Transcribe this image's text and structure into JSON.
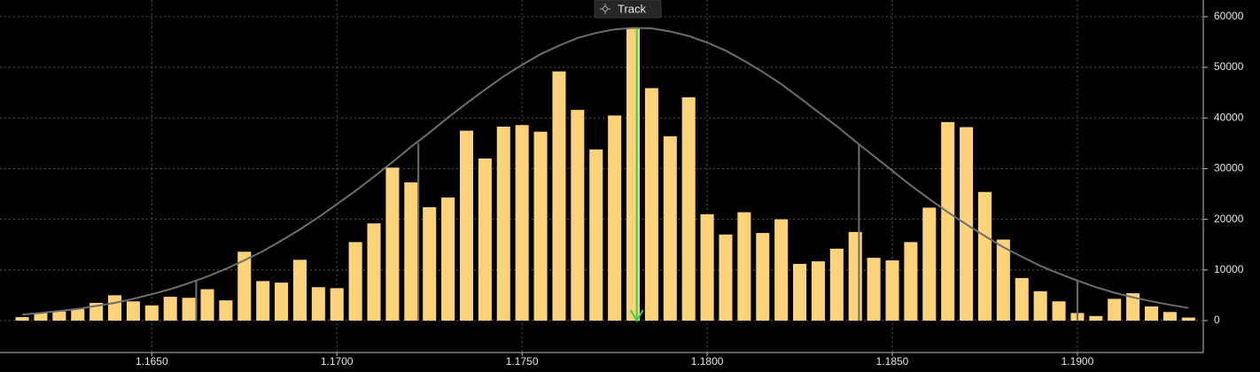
{
  "chart_data": {
    "type": "bar",
    "button": "Track",
    "x": [
      1.1615,
      1.162,
      1.1625,
      1.163,
      1.1635,
      1.164,
      1.1645,
      1.165,
      1.1655,
      1.166,
      1.1665,
      1.167,
      1.1675,
      1.168,
      1.1685,
      1.169,
      1.1695,
      1.17,
      1.1705,
      1.171,
      1.1715,
      1.172,
      1.1725,
      1.173,
      1.1735,
      1.174,
      1.1745,
      1.175,
      1.1755,
      1.176,
      1.1765,
      1.177,
      1.1775,
      1.178,
      1.1785,
      1.179,
      1.1795,
      1.18,
      1.1805,
      1.181,
      1.1815,
      1.182,
      1.1825,
      1.183,
      1.1835,
      1.184,
      1.1845,
      1.185,
      1.1855,
      1.186,
      1.1865,
      1.187,
      1.1875,
      1.188,
      1.1885,
      1.189,
      1.1895,
      1.19,
      1.1905,
      1.191,
      1.1915,
      1.192,
      1.1925,
      1.193
    ],
    "series": [
      {
        "type": "bar",
        "color": "#fcd27b",
        "values": [
          700,
          1500,
          1800,
          2300,
          3500,
          5000,
          3800,
          3000,
          4700,
          4500,
          6200,
          4000,
          13600,
          7800,
          7500,
          12000,
          6600,
          6400,
          15500,
          19200,
          30200,
          27300,
          22400,
          24300,
          37500,
          32000,
          38300,
          38600,
          37300,
          49200,
          41600,
          33800,
          40500,
          57800,
          45900,
          36400,
          44100,
          21000,
          17000,
          21400,
          17300,
          20000,
          11200,
          11700,
          14200,
          17500,
          12400,
          11900,
          15500,
          22300,
          39200,
          38200,
          25400,
          16000,
          8400,
          5800,
          3800,
          1500,
          900,
          4300,
          5400,
          2800,
          1700,
          600
        ]
      },
      {
        "type": "line",
        "color": "#6e6e6e",
        "values": [
          1200,
          1500,
          1900,
          2300,
          2900,
          3500,
          4300,
          5200,
          6200,
          7400,
          8700,
          10200,
          11900,
          13700,
          15800,
          18000,
          20400,
          23000,
          25600,
          28400,
          31300,
          34300,
          37100,
          40100,
          42900,
          45600,
          48200,
          50500,
          52600,
          54300,
          55800,
          56800,
          57500,
          57800,
          57700,
          57100,
          56200,
          54900,
          53300,
          51300,
          49100,
          46700,
          44000,
          41200,
          38400,
          35400,
          32500,
          29600,
          26700,
          24000,
          21400,
          19000,
          16700,
          14500,
          12600,
          10800,
          9300,
          7900,
          6600,
          5500,
          4600,
          3800,
          3100,
          2500
        ]
      }
    ],
    "reference_lines": [
      {
        "x": 1.1662,
        "value": 7800,
        "color": "#6e6e6e"
      },
      {
        "x": 1.1722,
        "value": 35000,
        "color": "#6e6e6e"
      },
      {
        "x": 1.1781,
        "value": 57800,
        "color": "#3cd13c"
      },
      {
        "x": 1.1841,
        "value": 35000,
        "color": "#6e6e6e"
      },
      {
        "x": 1.19,
        "value": 7800,
        "color": "#6e6e6e"
      }
    ],
    "xlim": [
      1.1609,
      1.1934
    ],
    "xticks": [
      {
        "value": 1.165,
        "label": "1.1650"
      },
      {
        "value": 1.17,
        "label": "1.1700"
      },
      {
        "value": 1.175,
        "label": "1.1750"
      },
      {
        "value": 1.18,
        "label": "1.1800"
      },
      {
        "value": 1.185,
        "label": "1.1850"
      },
      {
        "value": 1.19,
        "label": "1.1900"
      }
    ],
    "ylim": [
      -6300,
      63300
    ],
    "yticks": [
      0,
      10000,
      20000,
      30000,
      40000,
      50000,
      60000
    ],
    "grid": true,
    "y_axis_side": "right"
  }
}
